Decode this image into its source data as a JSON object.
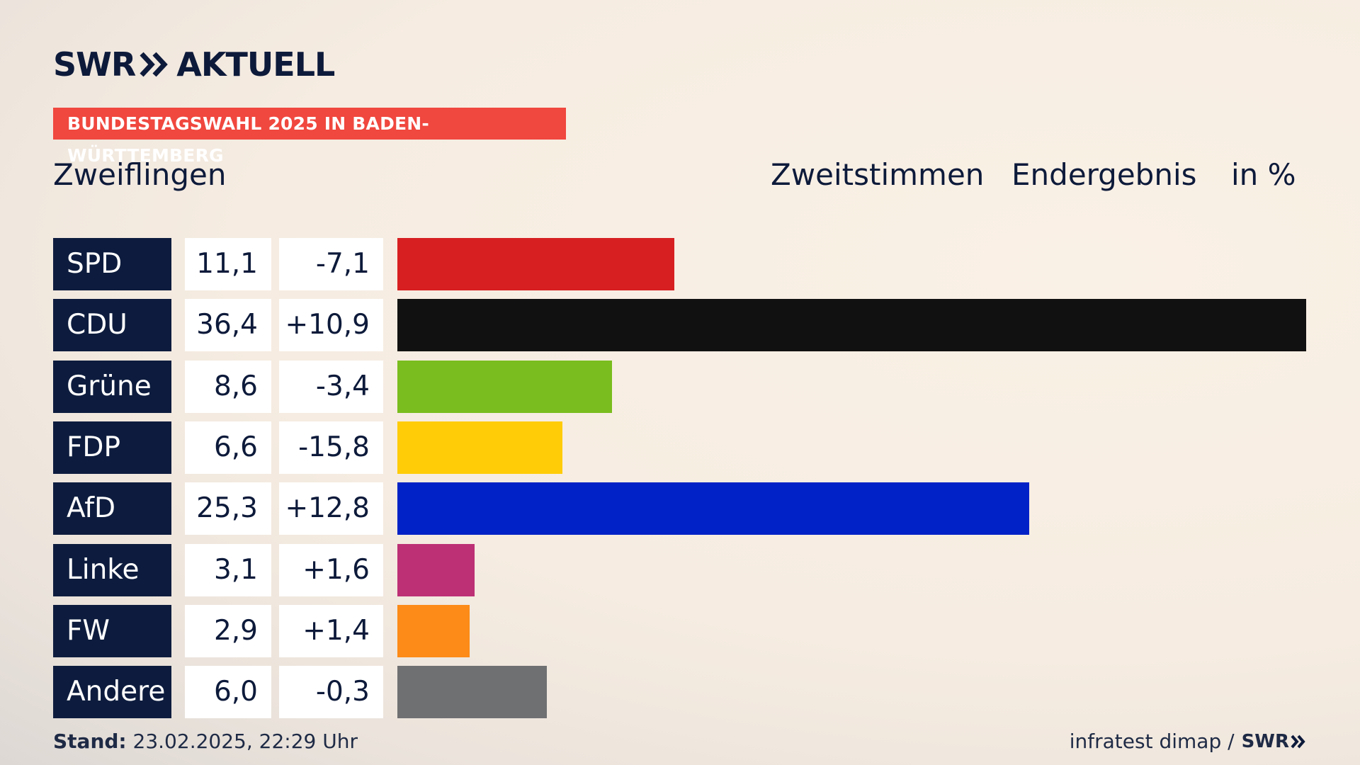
{
  "brand": {
    "logo_left": "SWR",
    "logo_right": "AKTUELL",
    "brand_color": "#0d1a3a"
  },
  "banner": {
    "text": "BUNDESTAGSWAHL 2025 IN BADEN-WÜRTTEMBERG",
    "color": "#f0473e"
  },
  "header": {
    "region": "Zweiflingen",
    "vote_type": "Zweitstimmen",
    "status": "Endergebnis",
    "unit": "in %"
  },
  "chart_data": {
    "type": "bar",
    "orientation": "horizontal",
    "categories": [
      "SPD",
      "CDU",
      "Grüne",
      "FDP",
      "AfD",
      "Linke",
      "FW",
      "Andere"
    ],
    "values": [
      11.1,
      36.4,
      8.6,
      6.6,
      25.3,
      3.1,
      2.9,
      6.0
    ],
    "value_labels": [
      "11,1",
      "36,4",
      "8,6",
      "6,6",
      "25,3",
      "3,1",
      "2,9",
      "6,0"
    ],
    "diffs": [
      -7.1,
      10.9,
      -3.4,
      -15.8,
      12.8,
      1.6,
      1.4,
      -0.3
    ],
    "diff_labels": [
      "-7,1",
      "+10,9",
      "-3,4",
      "-15,8",
      "+12,8",
      "+1,6",
      "+1,4",
      "-0,3"
    ],
    "colors": [
      "#d71f21",
      "#111111",
      "#7abd1e",
      "#ffcc07",
      "#0022c6",
      "#bd3076",
      "#fc8b17",
      "#6f7072"
    ],
    "xlim": [
      0,
      36.4
    ],
    "grid": false,
    "legend": "none"
  },
  "footer": {
    "stand_label": "Stand:",
    "stand_value": "23.02.2025, 22:29 Uhr",
    "source": "infratest dimap /",
    "source_logo": "SWR"
  }
}
